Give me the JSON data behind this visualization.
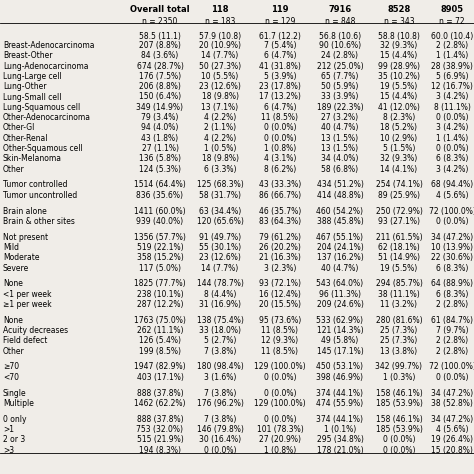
{
  "title_row1": [
    "Overall total",
    "118",
    "119",
    "7916",
    "8528",
    "8905"
  ],
  "title_row2": [
    "n = 2350",
    "n = 183",
    "n = 129",
    "n = 848",
    "n = 343",
    "n = 72"
  ],
  "subheader": [
    "58.5 (11.1)",
    "57.9 (10.8)",
    "61.7 (12.2)",
    "56.8 (10.6)",
    "58.8 (10.8)",
    "60.0 (10.4)"
  ],
  "rows": [
    [
      "Breast-Adenocarcinoma",
      "207 (8.8%)",
      "20 (10.9%)",
      "7 (5.4%)",
      "90 (10.6%)",
      "32 (9.3%)",
      "2 (2.8%)"
    ],
    [
      "Breast-Other",
      "84 (3.6%)",
      "14 (7.7%)",
      "6 (4.7%)",
      "24 (2.8%)",
      "15 (4.4%)",
      "1 (1.4%)"
    ],
    [
      "Lung-Adenocarcinoma",
      "674 (28.7%)",
      "50 (27.3%)",
      "41 (31.8%)",
      "212 (25.0%)",
      "99 (28.9%)",
      "28 (38.9%)"
    ],
    [
      "Lung-Large cell",
      "176 (7.5%)",
      "10 (5.5%)",
      "5 (3.9%)",
      "65 (7.7%)",
      "35 (10.2%)",
      "5 (6.9%)"
    ],
    [
      "Lung-Other",
      "206 (8.8%)",
      "23 (12.6%)",
      "23 (17.8%)",
      "50 (5.9%)",
      "19 (5.5%)",
      "12 (16.7%)"
    ],
    [
      "Lung-Small cell",
      "150 (6.4%)",
      "18 (9.8%)",
      "17 (13.2%)",
      "33 (3.9%)",
      "15 (4.4%)",
      "3 (4.2%)"
    ],
    [
      "Lung-Squamous cell",
      "349 (14.9%)",
      "13 (7.1%)",
      "6 (4.7%)",
      "189 (22.3%)",
      "41 (12.0%)",
      "8 (11.1%)"
    ],
    [
      "Other-Adenocarcinoma",
      "79 (3.4%)",
      "4 (2.2%)",
      "11 (8.5%)",
      "27 (3.2%)",
      "8 (2.3%)",
      "0 (0.0%)"
    ],
    [
      "Other-GI",
      "94 (4.0%)",
      "2 (1.1%)",
      "0 (0.0%)",
      "40 (4.7%)",
      "18 (5.2%)",
      "3 (4.2%)"
    ],
    [
      "Other-Renal",
      "43 (1.8%)",
      "4 (2.2%)",
      "0 (0.0%)",
      "13 (1.5%)",
      "10 (2.9%)",
      "1 (1.4%)"
    ],
    [
      "Other-Squamous cell",
      "27 (1.1%)",
      "1 (0.5%)",
      "1 (0.8%)",
      "13 (1.5%)",
      "5 (1.5%)",
      "0 (0.0%)"
    ],
    [
      "Skin-Melanoma",
      "136 (5.8%)",
      "18 (9.8%)",
      "4 (3.1%)",
      "34 (4.0%)",
      "32 (9.3%)",
      "6 (8.3%)"
    ],
    [
      "Other",
      "124 (5.3%)",
      "6 (3.3%)",
      "8 (6.2%)",
      "58 (6.8%)",
      "14 (4.1%)",
      "3 (4.2%)"
    ],
    [
      "Tumor controlled",
      "1514 (64.4%)",
      "125 (68.3%)",
      "43 (33.3%)",
      "434 (51.2%)",
      "254 (74.1%)",
      "68 (94.4%)"
    ],
    [
      "Tumor uncontrolled",
      "836 (35.6%)",
      "58 (31.7%)",
      "86 (66.7%)",
      "414 (48.8%)",
      "89 (25.9%)",
      "4 (5.6%)"
    ],
    [
      "Brain alone",
      "1411 (60.0%)",
      "63 (34.4%)",
      "46 (35.7%)",
      "460 (54.2%)",
      "250 (72.9%)",
      "72 (100.0%)"
    ],
    [
      "Brain & other sites",
      "939 (40.0%)",
      "120 (65.6%)",
      "83 (64.3%)",
      "388 (45.8%)",
      "93 (27.1%)",
      "0 (0.0%)"
    ],
    [
      "Not present",
      "1356 (57.7%)",
      "91 (49.7%)",
      "79 (61.2%)",
      "467 (55.1%)",
      "211 (61.5%)",
      "34 (47.2%)"
    ],
    [
      "Mild",
      "519 (22.1%)",
      "55 (30.1%)",
      "26 (20.2%)",
      "204 (24.1%)",
      "62 (18.1%)",
      "10 (13.9%)"
    ],
    [
      "Moderate",
      "358 (15.2%)",
      "23 (12.6%)",
      "21 (16.3%)",
      "137 (16.2%)",
      "51 (14.9%)",
      "22 (30.6%)"
    ],
    [
      "Severe",
      "117 (5.0%)",
      "14 (7.7%)",
      "3 (2.3%)",
      "40 (4.7%)",
      "19 (5.5%)",
      "6 (8.3%)"
    ],
    [
      "None",
      "1825 (77.7%)",
      "144 (78.7%)",
      "93 (72.1%)",
      "543 (64.0%)",
      "294 (85.7%)",
      "64 (88.9%)"
    ],
    [
      "<1 per week",
      "238 (10.1%)",
      "8 (4.4%)",
      "16 (12.4%)",
      "96 (11.3%)",
      "38 (11.1%)",
      "6 (8.3%)"
    ],
    [
      "≥1 per week",
      "287 (12.2%)",
      "31 (16.9%)",
      "20 (15.5%)",
      "209 (24.6%)",
      "11 (3.2%)",
      "2 (2.8%)"
    ],
    [
      "None",
      "1763 (75.0%)",
      "138 (75.4%)",
      "95 (73.6%)",
      "533 (62.9%)",
      "280 (81.6%)",
      "61 (84.7%)"
    ],
    [
      "Acuity decreases",
      "262 (11.1%)",
      "33 (18.0%)",
      "11 (8.5%)",
      "121 (14.3%)",
      "25 (7.3%)",
      "7 (9.7%)"
    ],
    [
      "Field defect",
      "126 (5.4%)",
      "5 (2.7%)",
      "12 (9.3%)",
      "49 (5.8%)",
      "25 (7.3%)",
      "2 (2.8%)"
    ],
    [
      "Other",
      "199 (8.5%)",
      "7 (3.8%)",
      "11 (8.5%)",
      "145 (17.1%)",
      "13 (3.8%)",
      "2 (2.8%)"
    ],
    [
      "≥70",
      "1947 (82.9%)",
      "180 (98.4%)",
      "129 (100.0%)",
      "450 (53.1%)",
      "342 (99.7%)",
      "72 (100.0%)"
    ],
    [
      "<70",
      "403 (17.1%)",
      "3 (1.6%)",
      "0 (0.0%)",
      "398 (46.9%)",
      "1 (0.3%)",
      "0 (0.0%)"
    ],
    [
      "Single",
      "888 (37.8%)",
      "7 (3.8%)",
      "0 (0.0%)",
      "374 (44.1%)",
      "158 (46.1%)",
      "34 (47.2%)"
    ],
    [
      "Multiple",
      "1462 (62.2%)",
      "176 (96.2%)",
      "129 (100.0%)",
      "474 (55.9%)",
      "185 (53.9%)",
      "38 (52.8%)"
    ],
    [
      "0 only",
      "888 (37.8%)",
      "7 (3.8%)",
      "0 (0.0%)",
      "374 (44.1%)",
      "158 (46.1%)",
      "34 (47.2%)"
    ],
    [
      ">1",
      "753 (32.0%)",
      "146 (79.8%)",
      "101 (78.3%)",
      "1 (0.1%)",
      "185 (53.9%)",
      "4 (5.6%)"
    ],
    [
      "2 or 3",
      "515 (21.9%)",
      "30 (16.4%)",
      "27 (20.9%)",
      "295 (34.8%)",
      "0 (0.0%)",
      "19 (26.4%)"
    ],
    [
      ">3",
      "194 (8.3%)",
      "0 (0.0%)",
      "1 (0.8%)",
      "178 (21.0%)",
      "0 (0.0%)",
      "15 (20.8%)"
    ]
  ],
  "blank_before_indices": [
    13,
    15,
    17,
    21,
    24,
    28,
    30,
    32
  ],
  "bg_color": "#f0ede8",
  "font_size": 5.5,
  "header_font_size": 6.0
}
